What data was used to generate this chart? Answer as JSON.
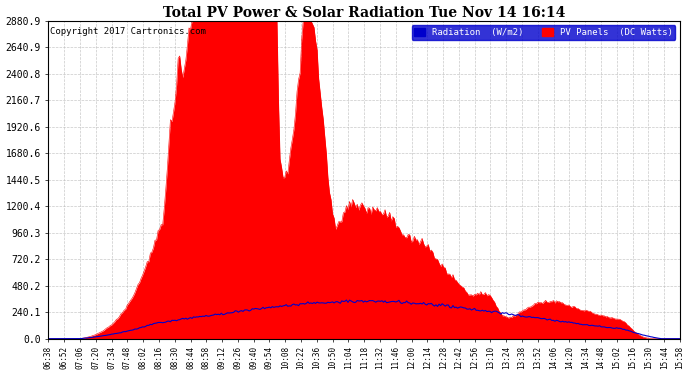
{
  "title": "Total PV Power & Solar Radiation Tue Nov 14 16:14",
  "copyright": "Copyright 2017 Cartronics.com",
  "legend_radiation": "Radiation  (W/m2)",
  "legend_pv": "PV Panels  (DC Watts)",
  "y_max": 2880.9,
  "y_min": 0.0,
  "y_ticks": [
    0.0,
    240.1,
    480.2,
    720.2,
    960.3,
    1200.4,
    1440.5,
    1680.6,
    1920.6,
    2160.7,
    2400.8,
    2640.9,
    2880.9
  ],
  "background_color": "#ffffff",
  "plot_background": "#ffffff",
  "grid_color": "#bbbbbb",
  "pv_color": "#ff0000",
  "radiation_color": "#0000cc",
  "x_labels": [
    "06:38",
    "06:52",
    "07:06",
    "07:20",
    "07:34",
    "07:48",
    "08:02",
    "08:16",
    "08:30",
    "08:44",
    "08:58",
    "09:12",
    "09:26",
    "09:40",
    "09:54",
    "10:08",
    "10:22",
    "10:36",
    "10:50",
    "11:04",
    "11:18",
    "11:32",
    "11:46",
    "12:00",
    "12:14",
    "12:28",
    "12:42",
    "12:56",
    "13:10",
    "13:24",
    "13:38",
    "13:52",
    "14:06",
    "14:20",
    "14:34",
    "14:48",
    "15:02",
    "15:16",
    "15:30",
    "15:44",
    "15:58"
  ]
}
